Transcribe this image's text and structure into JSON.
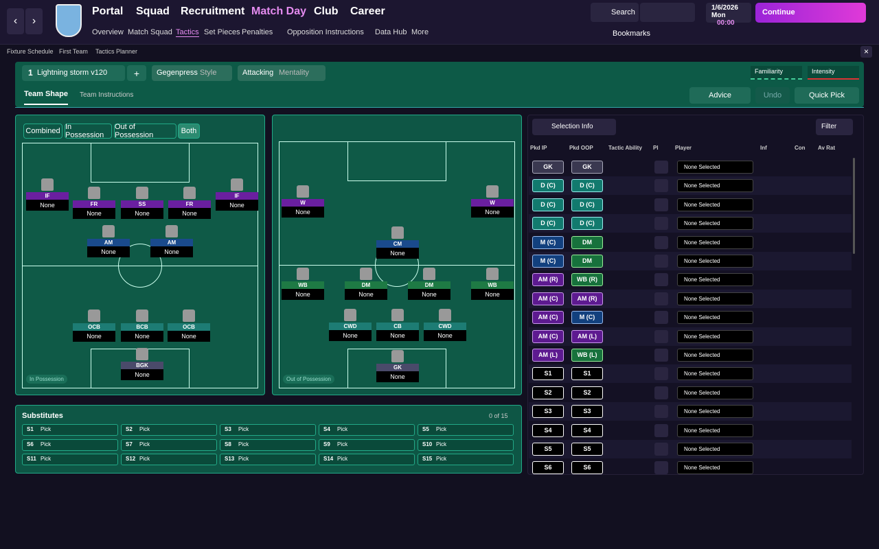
{
  "nav": {
    "main_menu": [
      "Portal",
      "Squad",
      "Recruitment",
      "Match Day",
      "Club",
      "Career"
    ],
    "sub_menu": [
      "Overview",
      "Match Squad",
      "Tactics",
      "Set Pieces",
      "Penalties",
      "Opposition Instructions",
      "Data Hub",
      "More"
    ],
    "search": "Search",
    "date": "1/6/2026",
    "day": "Mon",
    "time": "00:00",
    "continue": "Continue",
    "bookmarks": "Bookmarks"
  },
  "breadcrumb": [
    "Fixture Schedule",
    "First Team",
    "Tactics Planner"
  ],
  "tactic": {
    "number": "1",
    "name": "Lightning storm v120",
    "add": "+",
    "style_value": "Gegenpress",
    "style_label": "Style",
    "mentality_value": "Attacking",
    "mentality_label": "Mentality",
    "familiarity": "Familiarity",
    "intensity": "Intensity"
  },
  "tabs": [
    "Team Shape",
    "Team Instructions"
  ],
  "actions": {
    "advice": "Advice",
    "undo": "Undo",
    "quick_pick": "Quick Pick"
  },
  "filters": [
    "Combined",
    "In Possession",
    "Out of Possession",
    "Both"
  ],
  "pitch_in": {
    "label": "In Possession",
    "players": [
      {
        "role": "IF",
        "player": "None"
      },
      {
        "role": "FR",
        "player": "None"
      },
      {
        "role": "SS",
        "player": "None"
      },
      {
        "role": "FR",
        "player": "None"
      },
      {
        "role": "IF",
        "player": "None"
      },
      {
        "role": "AM",
        "player": "None"
      },
      {
        "role": "AM",
        "player": "None"
      },
      {
        "role": "OCB",
        "player": "None"
      },
      {
        "role": "BCB",
        "player": "None"
      },
      {
        "role": "OCB",
        "player": "None"
      },
      {
        "role": "BGK",
        "player": "None"
      }
    ]
  },
  "pitch_out": {
    "label": "Out of Possession",
    "players": [
      {
        "role": "W",
        "player": "None"
      },
      {
        "role": "W",
        "player": "None"
      },
      {
        "role": "CM",
        "player": "None"
      },
      {
        "role": "WB",
        "player": "None"
      },
      {
        "role": "DM",
        "player": "None"
      },
      {
        "role": "DM",
        "player": "None"
      },
      {
        "role": "WB",
        "player": "None"
      },
      {
        "role": "CWD",
        "player": "None"
      },
      {
        "role": "CB",
        "player": "None"
      },
      {
        "role": "CWD",
        "player": "None"
      },
      {
        "role": "GK",
        "player": "None"
      }
    ]
  },
  "substitutes": {
    "title": "Substitutes",
    "count": "0 of 15",
    "slots": [
      {
        "slot": "S1",
        "text": "Pick"
      },
      {
        "slot": "S2",
        "text": "Pick"
      },
      {
        "slot": "S3",
        "text": "Pick"
      },
      {
        "slot": "S4",
        "text": "Pick"
      },
      {
        "slot": "S5",
        "text": "Pick"
      },
      {
        "slot": "S6",
        "text": "Pick"
      },
      {
        "slot": "S7",
        "text": "Pick"
      },
      {
        "slot": "S8",
        "text": "Pick"
      },
      {
        "slot": "S9",
        "text": "Pick"
      },
      {
        "slot": "S10",
        "text": "Pick"
      },
      {
        "slot": "S11",
        "text": "Pick"
      },
      {
        "slot": "S12",
        "text": "Pick"
      },
      {
        "slot": "S13",
        "text": "Pick"
      },
      {
        "slot": "S14",
        "text": "Pick"
      },
      {
        "slot": "S15",
        "text": "Pick"
      }
    ]
  },
  "selection": {
    "title": "Selection Info",
    "filter": "Filter",
    "headers": [
      "Pkd IP",
      "Pkd OOP",
      "Tactic Ability",
      "Pl",
      "Player",
      "Inf",
      "Con",
      "Av Rat"
    ],
    "rows": [
      {
        "ip": "GK",
        "oop": "GK",
        "player": "None Selected"
      },
      {
        "ip": "D (C)",
        "oop": "D (C)",
        "player": "None Selected"
      },
      {
        "ip": "D (C)",
        "oop": "D (C)",
        "player": "None Selected"
      },
      {
        "ip": "D (C)",
        "oop": "D (C)",
        "player": "None Selected"
      },
      {
        "ip": "M (C)",
        "oop": "DM",
        "player": "None Selected"
      },
      {
        "ip": "M (C)",
        "oop": "DM",
        "player": "None Selected"
      },
      {
        "ip": "AM (R)",
        "oop": "WB (R)",
        "player": "None Selected"
      },
      {
        "ip": "AM (C)",
        "oop": "AM (R)",
        "player": "None Selected"
      },
      {
        "ip": "AM (C)",
        "oop": "M (C)",
        "player": "None Selected"
      },
      {
        "ip": "AM (C)",
        "oop": "AM (L)",
        "player": "None Selected"
      },
      {
        "ip": "AM (L)",
        "oop": "WB (L)",
        "player": "None Selected"
      },
      {
        "ip": "S1",
        "oop": "S1",
        "player": "None Selected"
      },
      {
        "ip": "S2",
        "oop": "S2",
        "player": "None Selected"
      },
      {
        "ip": "S3",
        "oop": "S3",
        "player": "None Selected"
      },
      {
        "ip": "S4",
        "oop": "S4",
        "player": "None Selected"
      },
      {
        "ip": "S5",
        "oop": "S5",
        "player": "None Selected"
      },
      {
        "ip": "S6",
        "oop": "S6",
        "player": "None Selected"
      }
    ]
  }
}
